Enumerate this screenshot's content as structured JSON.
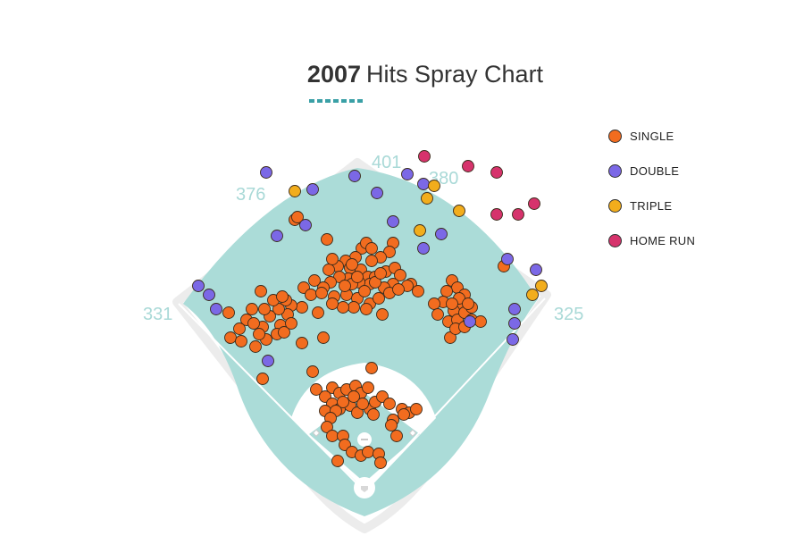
{
  "title": {
    "year": "2007",
    "text": "Hits Spray Chart"
  },
  "colors": {
    "single": "#f26c1f",
    "double": "#7b68e6",
    "triple": "#f2ad1c",
    "home_run": "#d6336c",
    "grass": "#abdcd8",
    "accent": "#3aa0a6"
  },
  "chart_data": {
    "type": "scatter",
    "title": "2007 Hits Spray Chart",
    "legend_position": "top-right",
    "fence_distances": [
      "331",
      "376",
      "401",
      "380",
      "325"
    ],
    "series": [
      {
        "name": "SINGLE",
        "key": "single",
        "points": [
          [
            330,
            246
          ],
          [
            333,
            243
          ],
          [
            366,
            268
          ],
          [
            405,
            278
          ],
          [
            410,
            272
          ],
          [
            416,
            278
          ],
          [
            440,
            272
          ],
          [
            436,
            282
          ],
          [
            426,
            288
          ],
          [
            416,
            292
          ],
          [
            398,
            288
          ],
          [
            387,
            292
          ],
          [
            378,
            298
          ],
          [
            368,
            302
          ],
          [
            372,
            290
          ],
          [
            392,
            300
          ],
          [
            404,
            302
          ],
          [
            412,
            310
          ],
          [
            420,
            310
          ],
          [
            432,
            304
          ],
          [
            442,
            300
          ],
          [
            448,
            308
          ],
          [
            460,
            318
          ],
          [
            468,
            326
          ],
          [
            456,
            320
          ],
          [
            440,
            318
          ],
          [
            430,
            322
          ],
          [
            414,
            318
          ],
          [
            402,
            316
          ],
          [
            390,
            312
          ],
          [
            380,
            310
          ],
          [
            370,
            316
          ],
          [
            362,
            322
          ],
          [
            352,
            314
          ],
          [
            340,
            322
          ],
          [
            348,
            330
          ],
          [
            360,
            328
          ],
          [
            374,
            332
          ],
          [
            388,
            330
          ],
          [
            400,
            334
          ],
          [
            414,
            340
          ],
          [
            424,
            334
          ],
          [
            436,
            328
          ],
          [
            446,
            324
          ],
          [
            428,
            352
          ],
          [
            410,
            346
          ],
          [
            396,
            344
          ],
          [
            384,
            344
          ],
          [
            372,
            340
          ],
          [
            356,
            350
          ],
          [
            338,
            344
          ],
          [
            326,
            342
          ],
          [
            322,
            352
          ],
          [
            314,
            364
          ],
          [
            310,
            374
          ],
          [
            318,
            372
          ],
          [
            326,
            362
          ],
          [
            320,
            336
          ],
          [
            312,
            346
          ],
          [
            302,
            354
          ],
          [
            294,
            366
          ],
          [
            296,
            346
          ],
          [
            292,
            326
          ],
          [
            306,
            336
          ],
          [
            316,
            332
          ],
          [
            282,
            346
          ],
          [
            276,
            358
          ],
          [
            268,
            368
          ],
          [
            258,
            378
          ],
          [
            270,
            382
          ],
          [
            286,
            388
          ],
          [
            298,
            380
          ],
          [
            290,
            374
          ],
          [
            284,
            362
          ],
          [
            256,
            350
          ],
          [
            338,
            384
          ],
          [
            362,
            378
          ],
          [
            294,
            424
          ],
          [
            394,
            318
          ],
          [
            386,
            320
          ],
          [
            408,
            326
          ],
          [
            420,
            316
          ],
          [
            426,
            306
          ],
          [
            394,
            296
          ],
          [
            400,
            310
          ],
          [
            506,
            314
          ],
          [
            512,
            322
          ],
          [
            520,
            330
          ],
          [
            516,
            340
          ],
          [
            508,
            348
          ],
          [
            500,
            326
          ],
          [
            496,
            338
          ],
          [
            486,
            340
          ],
          [
            490,
            352
          ],
          [
            502,
            360
          ],
          [
            512,
            358
          ],
          [
            520,
            350
          ],
          [
            528,
            358
          ],
          [
            538,
            360
          ],
          [
            504,
            378
          ],
          [
            510,
            368
          ],
          [
            520,
            366
          ],
          [
            528,
            344
          ],
          [
            514,
            334
          ],
          [
            524,
            340
          ],
          [
            506,
            340
          ],
          [
            564,
            298
          ],
          [
            350,
            416
          ],
          [
            372,
            434
          ],
          [
            380,
            440
          ],
          [
            388,
            436
          ],
          [
            398,
            432
          ],
          [
            404,
            440
          ],
          [
            412,
            434
          ],
          [
            354,
            436
          ],
          [
            364,
            444
          ],
          [
            372,
            452
          ],
          [
            364,
            460
          ],
          [
            380,
            458
          ],
          [
            392,
            454
          ],
          [
            400,
            462
          ],
          [
            414,
            458
          ],
          [
            420,
            450
          ],
          [
            428,
            444
          ],
          [
            436,
            452
          ],
          [
            450,
            458
          ],
          [
            458,
            462
          ],
          [
            466,
            458
          ],
          [
            452,
            464
          ],
          [
            440,
            470
          ],
          [
            444,
            488
          ],
          [
            438,
            476
          ],
          [
            418,
            464
          ],
          [
            406,
            452
          ],
          [
            396,
            444
          ],
          [
            384,
            450
          ],
          [
            376,
            460
          ],
          [
            370,
            468
          ],
          [
            366,
            478
          ],
          [
            372,
            488
          ],
          [
            384,
            488
          ],
          [
            386,
            498
          ],
          [
            394,
            506
          ],
          [
            404,
            510
          ],
          [
            412,
            506
          ],
          [
            424,
            508
          ],
          [
            426,
            518
          ],
          [
            378,
            516
          ],
          [
            416,
            412
          ]
        ]
      },
      {
        "name": "DOUBLE",
        "key": "double",
        "points": [
          [
            298,
            193
          ],
          [
            350,
            212
          ],
          [
            397,
            197
          ],
          [
            422,
            216
          ],
          [
            456,
            195
          ],
          [
            474,
            206
          ],
          [
            440,
            248
          ],
          [
            474,
            278
          ],
          [
            494,
            262
          ],
          [
            310,
            264
          ],
          [
            342,
            252
          ],
          [
            222,
            320
          ],
          [
            234,
            330
          ],
          [
            242,
            346
          ],
          [
            300,
            404
          ],
          [
            568,
            290
          ],
          [
            600,
            302
          ],
          [
            576,
            346
          ],
          [
            576,
            362
          ],
          [
            574,
            380
          ],
          [
            526,
            360
          ]
        ]
      },
      {
        "name": "TRIPLE",
        "key": "triple",
        "points": [
          [
            330,
            214
          ],
          [
            478,
            222
          ],
          [
            486,
            208
          ],
          [
            514,
            236
          ],
          [
            470,
            258
          ],
          [
            606,
            320
          ],
          [
            596,
            330
          ]
        ]
      },
      {
        "name": "HOME RUN",
        "key": "home_run",
        "points": [
          [
            475,
            175
          ],
          [
            524,
            186
          ],
          [
            556,
            193
          ],
          [
            556,
            240
          ],
          [
            580,
            240
          ],
          [
            598,
            228
          ]
        ]
      }
    ]
  }
}
